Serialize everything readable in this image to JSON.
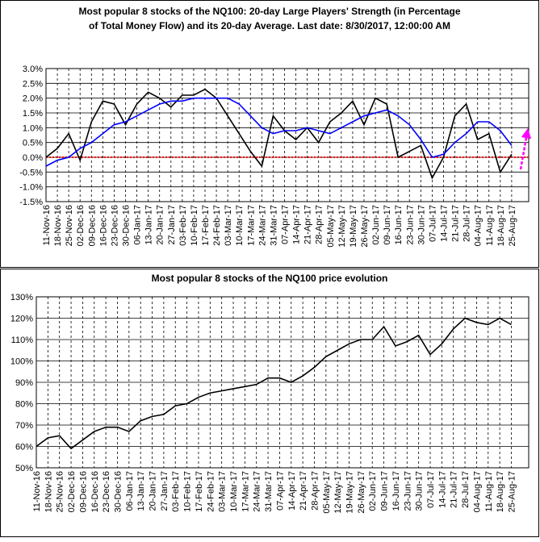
{
  "chart_data": [
    {
      "type": "line",
      "title": [
        "Most popular 8 stocks of the NQ100: 20-day Large Players' Strength (in Percentage",
        "of Total Money Flow) and its 20-day Average. Last date: 8/30/2017, 12:00:00 AM"
      ],
      "categories": [
        "11-Nov-16",
        "18-Nov-16",
        "25-Nov-16",
        "02-Dec-16",
        "09-Dec-16",
        "16-Dec-16",
        "23-Dec-16",
        "30-Dec-16",
        "06-Jan-17",
        "13-Jan-17",
        "20-Jan-17",
        "27-Jan-17",
        "03-Feb-17",
        "10-Feb-17",
        "17-Feb-17",
        "24-Feb-17",
        "03-Mar-17",
        "10-Mar-17",
        "17-Mar-17",
        "24-Mar-17",
        "31-Mar-17",
        "07-Apr-17",
        "14-Apr-17",
        "21-Apr-17",
        "28-Apr-17",
        "05-May-17",
        "12-May-17",
        "19-May-17",
        "26-May-17",
        "02-Jun-17",
        "09-Jun-17",
        "16-Jun-17",
        "23-Jun-17",
        "30-Jun-17",
        "07-Jul-17",
        "14-Jul-17",
        "21-Jul-17",
        "28-Jul-17",
        "04-Aug-17",
        "11-Aug-17",
        "18-Aug-17",
        "25-Aug-17"
      ],
      "series": [
        {
          "color": "#000000",
          "values": [
            0.0,
            0.3,
            0.8,
            -0.1,
            1.2,
            1.9,
            1.8,
            1.1,
            1.8,
            2.2,
            2.0,
            1.7,
            2.1,
            2.1,
            2.3,
            2.0,
            1.4,
            0.8,
            0.2,
            -0.3,
            1.4,
            0.9,
            0.6,
            1.0,
            0.5,
            1.2,
            1.5,
            1.9,
            1.1,
            2.0,
            1.8,
            0.0,
            0.2,
            0.4,
            -0.7,
            0.0,
            1.4,
            1.8,
            0.6,
            0.8,
            -0.5,
            0.1
          ]
        },
        {
          "color": "#0000ff",
          "values": [
            -0.3,
            -0.1,
            0.0,
            0.3,
            0.5,
            0.8,
            1.1,
            1.2,
            1.4,
            1.6,
            1.8,
            1.9,
            1.9,
            2.0,
            2.0,
            2.0,
            2.0,
            1.8,
            1.4,
            1.0,
            0.8,
            0.9,
            0.9,
            1.0,
            0.9,
            0.8,
            1.0,
            1.2,
            1.4,
            1.5,
            1.6,
            1.4,
            1.1,
            0.6,
            0.0,
            0.1,
            0.5,
            0.8,
            1.2,
            1.2,
            0.9,
            0.4
          ]
        }
      ],
      "ylim": [
        -1.5,
        3.0
      ],
      "yticks": [
        {
          "value": -1.5,
          "label": "-1.5%"
        },
        {
          "value": -1.0,
          "label": "-1.0%"
        },
        {
          "value": -0.5,
          "label": "-0.5%"
        },
        {
          "value": 0,
          "label": "0.0%"
        },
        {
          "value": 0.5,
          "label": "0.5%"
        },
        {
          "value": 1.0,
          "label": "1.0%"
        },
        {
          "value": 1.5,
          "label": "1.5%"
        },
        {
          "value": 2.0,
          "label": "2.0%"
        },
        {
          "value": 2.5,
          "label": "2.5%"
        },
        {
          "value": 3.0,
          "label": "3.0%"
        }
      ],
      "grid": true
    },
    {
      "type": "line",
      "title": [
        "Most popular 8 stocks of the NQ100 price evolution"
      ],
      "categories": [
        "11-Nov-16",
        "18-Nov-16",
        "25-Nov-16",
        "02-Dec-16",
        "09-Dec-16",
        "16-Dec-16",
        "23-Dec-16",
        "30-Dec-16",
        "06-Jan-17",
        "13-Jan-17",
        "20-Jan-17",
        "27-Jan-17",
        "03-Feb-17",
        "10-Feb-17",
        "17-Feb-17",
        "24-Feb-17",
        "03-Mar-17",
        "10-Mar-17",
        "17-Mar-17",
        "24-Mar-17",
        "31-Mar-17",
        "07-Apr-17",
        "14-Apr-17",
        "21-Apr-17",
        "28-Apr-17",
        "05-May-17",
        "12-May-17",
        "19-May-17",
        "26-May-17",
        "02-Jun-17",
        "09-Jun-17",
        "16-Jun-17",
        "23-Jun-17",
        "30-Jun-17",
        "07-Jul-17",
        "14-Jul-17",
        "21-Jul-17",
        "28-Jul-17",
        "04-Aug-17",
        "11-Aug-17",
        "18-Aug-17",
        "25-Aug-17"
      ],
      "series": [
        {
          "color": "#000000",
          "values": [
            60,
            64,
            65,
            59,
            63,
            67,
            69,
            69,
            67,
            72,
            74,
            75,
            79,
            80,
            83,
            85,
            86,
            87,
            88,
            89,
            92,
            92,
            90,
            93,
            97,
            102,
            105,
            108,
            110,
            110,
            116,
            107,
            109,
            112,
            103,
            108,
            115,
            120,
            118,
            117,
            120,
            117
          ]
        }
      ],
      "ylim": [
        50,
        130
      ],
      "yticks": [
        {
          "value": 50,
          "label": "50%"
        },
        {
          "value": 60,
          "label": "60%"
        },
        {
          "value": 70,
          "label": "70%"
        },
        {
          "value": 80,
          "label": "80%"
        },
        {
          "value": 90,
          "label": "90%"
        },
        {
          "value": 100,
          "label": "100%"
        },
        {
          "value": 110,
          "label": "110%"
        },
        {
          "value": 120,
          "label": "120%"
        },
        {
          "value": 130,
          "label": "130%"
        }
      ],
      "grid": true
    }
  ]
}
